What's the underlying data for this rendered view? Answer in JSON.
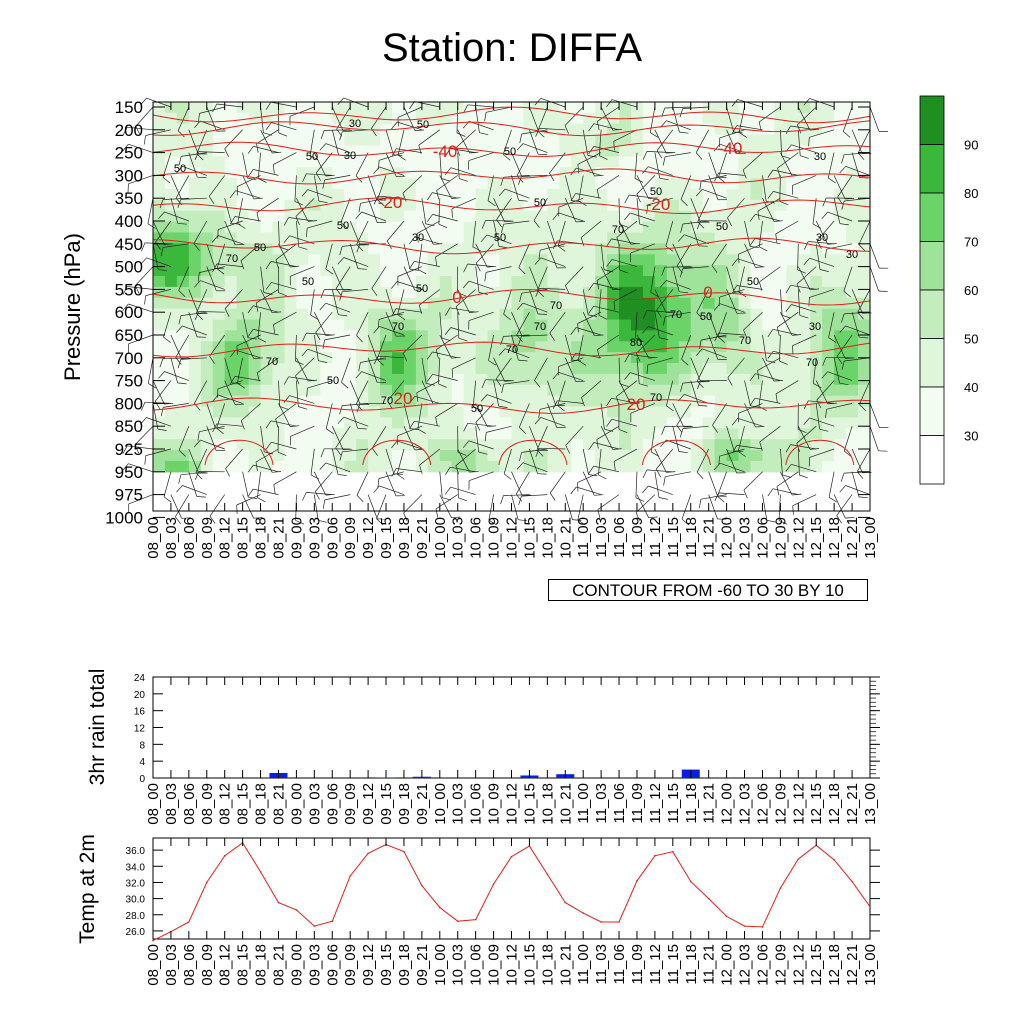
{
  "title": "Station: DIFFA",
  "contour_note": "CONTOUR FROM -60 TO 30 BY 10",
  "colors": {
    "band_30_40": "#f3fcf1",
    "band_40_50": "#dff6da",
    "band_50_60": "#c4edbd",
    "band_60_70": "#9fe29a",
    "band_70_80": "#6bd468",
    "band_80_90": "#3bb83b",
    "band_90_up": "#1f8f22",
    "temp_contour": "#e0201b",
    "rain_bar": "#0a1de0",
    "temp_line": "#e0201b"
  },
  "chart_data": [
    {
      "type": "heatmap",
      "panel": "main",
      "ylabel": "Pressure (hPa)",
      "y_ticks": [
        "150",
        "200",
        "250",
        "300",
        "350",
        "400",
        "450",
        "500",
        "550",
        "600",
        "650",
        "700",
        "750",
        "800",
        "850",
        "925",
        "950",
        "975",
        "1000"
      ],
      "x_ticks": [
        "08_00",
        "08_03",
        "08_06",
        "08_09",
        "08_12",
        "08_15",
        "08_18",
        "08_21",
        "09_00",
        "09_03",
        "09_06",
        "09_09",
        "09_12",
        "09_15",
        "09_18",
        "09_21",
        "10_00",
        "10_03",
        "10_06",
        "10_09",
        "10_12",
        "10_15",
        "10_18",
        "10_21",
        "11_00",
        "11_03",
        "11_06",
        "11_09",
        "11_12",
        "11_15",
        "11_18",
        "11_21",
        "12_00",
        "12_03",
        "12_06",
        "12_09",
        "12_12",
        "12_15",
        "12_18",
        "12_21",
        "13_00"
      ],
      "colorbar_labels": [
        "30",
        "40",
        "50",
        "60",
        "70",
        "80",
        "90"
      ],
      "rh_contour_labels": [
        "30",
        "50",
        "70",
        "80"
      ],
      "temp_contour_labels": [
        "-40",
        "-20",
        "0",
        "20"
      ],
      "temp_contour_range": [
        -60,
        30
      ],
      "temp_contour_interval": 10
    },
    {
      "type": "bar",
      "panel": "rain",
      "ylabel": "3hr rain total",
      "ylim": [
        0,
        24
      ],
      "y_ticks": [
        "0",
        "4",
        "8",
        "12",
        "16",
        "20",
        "24"
      ],
      "categories": [
        "08_00",
        "08_03",
        "08_06",
        "08_09",
        "08_12",
        "08_15",
        "08_18",
        "08_21",
        "09_00",
        "09_03",
        "09_06",
        "09_09",
        "09_12",
        "09_15",
        "09_18",
        "09_21",
        "10_00",
        "10_03",
        "10_06",
        "10_09",
        "10_12",
        "10_15",
        "10_18",
        "10_21",
        "11_00",
        "11_03",
        "11_06",
        "11_09",
        "11_12",
        "11_15",
        "11_18",
        "11_21",
        "12_00",
        "12_03",
        "12_06",
        "12_09",
        "12_12",
        "12_15",
        "12_18",
        "12_21",
        "13_00"
      ],
      "values": [
        0,
        0,
        0,
        0,
        0,
        0,
        0,
        1.2,
        0,
        0,
        0,
        0,
        0,
        0.1,
        0,
        0.3,
        0,
        0,
        0,
        0,
        0,
        0.6,
        0,
        0.9,
        0,
        0,
        0,
        0,
        0,
        0,
        2.0,
        0,
        0,
        0,
        0,
        0,
        0,
        0,
        0,
        0,
        0
      ]
    },
    {
      "type": "line",
      "panel": "temp",
      "ylabel": "Temp at 2m",
      "ylim": [
        25.0,
        37.5
      ],
      "y_ticks": [
        "26.0",
        "28.0",
        "30.0",
        "32.0",
        "34.0",
        "36.0"
      ],
      "x": [
        "08_00",
        "08_03",
        "08_06",
        "08_09",
        "08_12",
        "08_15",
        "08_18",
        "08_21",
        "09_00",
        "09_03",
        "09_06",
        "09_09",
        "09_12",
        "09_15",
        "09_18",
        "09_21",
        "10_00",
        "10_03",
        "10_06",
        "10_09",
        "10_12",
        "10_15",
        "10_18",
        "10_21",
        "11_00",
        "11_03",
        "11_06",
        "11_09",
        "11_12",
        "11_15",
        "11_18",
        "11_21",
        "12_00",
        "12_03",
        "12_06",
        "12_09",
        "12_12",
        "12_15",
        "12_18",
        "12_21",
        "13_00"
      ],
      "values": [
        24.8,
        25.9,
        27.1,
        32.0,
        35.3,
        36.9,
        33.3,
        29.5,
        28.6,
        26.6,
        27.2,
        32.8,
        35.6,
        36.7,
        35.8,
        31.6,
        28.9,
        27.2,
        27.4,
        31.8,
        35.2,
        36.5,
        33.0,
        29.5,
        28.2,
        27.1,
        27.1,
        32.2,
        35.3,
        35.8,
        32.1,
        30.0,
        27.8,
        26.6,
        26.5,
        31.3,
        34.9,
        36.6,
        34.8,
        32.1,
        29.0
      ]
    }
  ]
}
